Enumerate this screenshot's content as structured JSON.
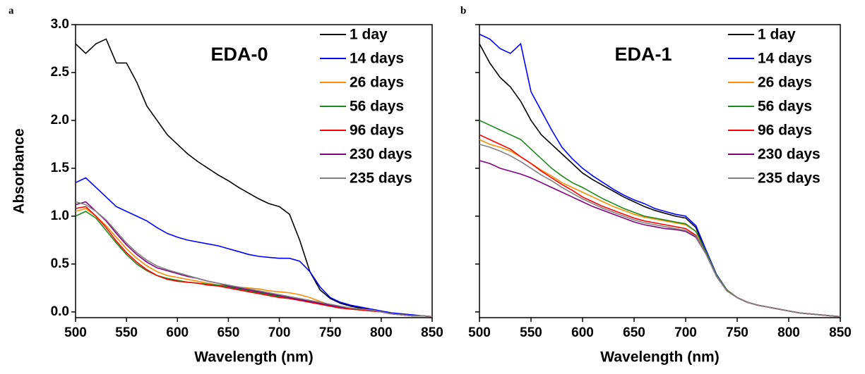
{
  "chart_data": [
    {
      "type": "line",
      "panel_label": "a",
      "annotation": "EDA-0",
      "xlabel": "Wavelength (nm)",
      "ylabel": "Absorbance",
      "x": [
        500,
        510,
        520,
        530,
        540,
        550,
        560,
        570,
        580,
        590,
        600,
        610,
        620,
        630,
        640,
        650,
        660,
        670,
        680,
        690,
        700,
        710,
        720,
        730,
        740,
        750,
        760,
        770,
        780,
        790,
        800,
        810,
        820,
        830,
        840,
        850
      ],
      "xlim": [
        500,
        850
      ],
      "xticks": [
        500,
        550,
        600,
        650,
        700,
        750,
        800,
        850
      ],
      "ylim": [
        -0.06,
        3.0
      ],
      "yticks": [
        {
          "value": 0,
          "label": "0.0"
        },
        {
          "value": 0.5,
          "label": "0.5"
        },
        {
          "value": 1,
          "label": "1.0"
        },
        {
          "value": 1.5,
          "label": "1.5"
        },
        {
          "value": 2,
          "label": "2.0"
        },
        {
          "value": 2.5,
          "label": "2.5"
        },
        {
          "value": 3,
          "label": "3.0"
        }
      ],
      "show_ytick_labels": true,
      "series": [
        {
          "name": "1 day",
          "color": "#000000",
          "values": [
            2.8,
            2.7,
            2.8,
            2.85,
            2.6,
            2.6,
            2.4,
            2.15,
            2.0,
            1.85,
            1.75,
            1.65,
            1.57,
            1.5,
            1.43,
            1.37,
            1.3,
            1.24,
            1.18,
            1.13,
            1.1,
            1.02,
            0.75,
            0.42,
            0.23,
            0.14,
            0.09,
            0.06,
            0.04,
            0.02,
            0.0,
            -0.02,
            -0.03,
            -0.04,
            -0.04,
            -0.05
          ]
        },
        {
          "name": "14 days",
          "color": "#0000ff",
          "values": [
            1.35,
            1.4,
            1.3,
            1.2,
            1.1,
            1.05,
            1.0,
            0.95,
            0.88,
            0.82,
            0.78,
            0.75,
            0.73,
            0.71,
            0.69,
            0.66,
            0.63,
            0.6,
            0.58,
            0.57,
            0.56,
            0.56,
            0.53,
            0.42,
            0.26,
            0.15,
            0.1,
            0.07,
            0.05,
            0.03,
            0.01,
            -0.01,
            -0.02,
            -0.03,
            -0.04,
            -0.05
          ]
        },
        {
          "name": "26 days",
          "color": "#ff8c00",
          "values": [
            1.05,
            1.08,
            1.0,
            0.9,
            0.78,
            0.66,
            0.56,
            0.48,
            0.42,
            0.38,
            0.36,
            0.34,
            0.32,
            0.3,
            0.28,
            0.27,
            0.26,
            0.25,
            0.24,
            0.22,
            0.21,
            0.2,
            0.18,
            0.15,
            0.11,
            0.07,
            0.05,
            0.03,
            0.02,
            0.01,
            0.0,
            -0.02,
            -0.03,
            -0.04,
            -0.04,
            -0.05
          ]
        },
        {
          "name": "56 days",
          "color": "#1a8a1a",
          "values": [
            1.0,
            1.05,
            0.98,
            0.85,
            0.72,
            0.6,
            0.5,
            0.43,
            0.38,
            0.35,
            0.33,
            0.31,
            0.3,
            0.29,
            0.28,
            0.26,
            0.24,
            0.22,
            0.2,
            0.18,
            0.16,
            0.14,
            0.12,
            0.1,
            0.08,
            0.06,
            0.04,
            0.03,
            0.02,
            0.01,
            0.0,
            -0.02,
            -0.03,
            -0.04,
            -0.04,
            -0.05
          ]
        },
        {
          "name": "96 days",
          "color": "#ff0000",
          "values": [
            1.08,
            1.1,
            1.0,
            0.88,
            0.74,
            0.62,
            0.52,
            0.44,
            0.38,
            0.34,
            0.32,
            0.31,
            0.3,
            0.28,
            0.27,
            0.25,
            0.23,
            0.21,
            0.19,
            0.17,
            0.15,
            0.14,
            0.12,
            0.1,
            0.08,
            0.06,
            0.04,
            0.03,
            0.02,
            0.01,
            0.0,
            -0.02,
            -0.03,
            -0.04,
            -0.04,
            -0.05
          ]
        },
        {
          "name": "230 days",
          "color": "#800080",
          "values": [
            1.12,
            1.15,
            1.05,
            0.95,
            0.82,
            0.7,
            0.6,
            0.52,
            0.46,
            0.43,
            0.4,
            0.37,
            0.35,
            0.32,
            0.3,
            0.27,
            0.25,
            0.23,
            0.21,
            0.19,
            0.17,
            0.15,
            0.13,
            0.11,
            0.09,
            0.07,
            0.05,
            0.04,
            0.03,
            0.02,
            0.0,
            -0.02,
            -0.03,
            -0.04,
            -0.04,
            -0.05
          ]
        },
        {
          "name": "235 days",
          "color": "#808080",
          "values": [
            1.15,
            1.12,
            1.05,
            0.96,
            0.84,
            0.72,
            0.62,
            0.54,
            0.48,
            0.44,
            0.41,
            0.38,
            0.35,
            0.32,
            0.3,
            0.28,
            0.26,
            0.24,
            0.22,
            0.2,
            0.18,
            0.16,
            0.14,
            0.12,
            0.1,
            0.08,
            0.06,
            0.04,
            0.03,
            0.02,
            0.0,
            -0.02,
            -0.03,
            -0.04,
            -0.04,
            -0.05
          ]
        }
      ]
    },
    {
      "type": "line",
      "panel_label": "b",
      "annotation": "EDA-1",
      "xlabel": "Wavelength (nm)",
      "x": [
        500,
        510,
        520,
        530,
        540,
        550,
        560,
        570,
        580,
        590,
        600,
        610,
        620,
        630,
        640,
        650,
        660,
        670,
        680,
        690,
        700,
        710,
        720,
        730,
        740,
        750,
        760,
        770,
        780,
        790,
        800,
        810,
        820,
        830,
        840,
        850
      ],
      "xlim": [
        500,
        850
      ],
      "xticks": [
        500,
        550,
        600,
        650,
        700,
        750,
        800,
        850
      ],
      "ylim": [
        -0.06,
        3.0
      ],
      "yticks": [
        0,
        0.5,
        1,
        1.5,
        2,
        2.5,
        3
      ],
      "show_ytick_labels": false,
      "series": [
        {
          "name": "1 day",
          "color": "#000000",
          "values": [
            2.8,
            2.6,
            2.45,
            2.35,
            2.2,
            2.0,
            1.85,
            1.75,
            1.65,
            1.55,
            1.45,
            1.38,
            1.32,
            1.26,
            1.2,
            1.15,
            1.1,
            1.06,
            1.03,
            1.0,
            0.98,
            0.88,
            0.62,
            0.38,
            0.23,
            0.15,
            0.1,
            0.07,
            0.05,
            0.03,
            0.01,
            -0.01,
            -0.02,
            -0.03,
            -0.04,
            -0.05
          ]
        },
        {
          "name": "14 days",
          "color": "#0000ff",
          "values": [
            2.9,
            2.85,
            2.75,
            2.7,
            2.8,
            2.3,
            2.1,
            1.9,
            1.72,
            1.6,
            1.5,
            1.42,
            1.35,
            1.28,
            1.22,
            1.17,
            1.13,
            1.08,
            1.05,
            1.02,
            1.0,
            0.9,
            0.64,
            0.39,
            0.23,
            0.15,
            0.1,
            0.07,
            0.05,
            0.03,
            0.01,
            -0.01,
            -0.02,
            -0.03,
            -0.04,
            -0.05
          ]
        },
        {
          "name": "26 days",
          "color": "#ff8c00",
          "values": [
            1.8,
            1.75,
            1.72,
            1.68,
            1.62,
            1.55,
            1.48,
            1.42,
            1.35,
            1.3,
            1.25,
            1.2,
            1.15,
            1.1,
            1.06,
            1.02,
            0.99,
            0.97,
            0.95,
            0.93,
            0.91,
            0.84,
            0.62,
            0.38,
            0.23,
            0.15,
            0.1,
            0.07,
            0.05,
            0.03,
            0.01,
            -0.01,
            -0.02,
            -0.03,
            -0.04,
            -0.05
          ]
        },
        {
          "name": "56 days",
          "color": "#1a8a1a",
          "values": [
            2.0,
            1.95,
            1.9,
            1.85,
            1.8,
            1.7,
            1.6,
            1.5,
            1.42,
            1.35,
            1.3,
            1.24,
            1.18,
            1.13,
            1.08,
            1.04,
            1.0,
            0.98,
            0.96,
            0.94,
            0.92,
            0.84,
            0.62,
            0.38,
            0.23,
            0.15,
            0.1,
            0.07,
            0.05,
            0.03,
            0.01,
            -0.01,
            -0.02,
            -0.03,
            -0.04,
            -0.05
          ]
        },
        {
          "name": "96 days",
          "color": "#ff0000",
          "values": [
            1.85,
            1.8,
            1.75,
            1.7,
            1.62,
            1.55,
            1.47,
            1.4,
            1.33,
            1.27,
            1.2,
            1.15,
            1.1,
            1.06,
            1.02,
            0.98,
            0.95,
            0.93,
            0.91,
            0.89,
            0.87,
            0.8,
            0.6,
            0.37,
            0.22,
            0.15,
            0.1,
            0.07,
            0.05,
            0.03,
            0.01,
            -0.01,
            -0.02,
            -0.03,
            -0.04,
            -0.05
          ]
        },
        {
          "name": "230 days",
          "color": "#800080",
          "values": [
            1.58,
            1.55,
            1.5,
            1.47,
            1.44,
            1.4,
            1.35,
            1.3,
            1.25,
            1.2,
            1.15,
            1.1,
            1.06,
            1.02,
            0.98,
            0.94,
            0.91,
            0.89,
            0.87,
            0.86,
            0.84,
            0.78,
            0.6,
            0.37,
            0.22,
            0.15,
            0.1,
            0.07,
            0.05,
            0.03,
            0.01,
            -0.01,
            -0.02,
            -0.03,
            -0.04,
            -0.05
          ]
        },
        {
          "name": "235 days",
          "color": "#808080",
          "values": [
            1.75,
            1.72,
            1.68,
            1.63,
            1.57,
            1.5,
            1.43,
            1.37,
            1.3,
            1.24,
            1.18,
            1.13,
            1.08,
            1.04,
            1.0,
            0.96,
            0.93,
            0.91,
            0.89,
            0.87,
            0.85,
            0.79,
            0.6,
            0.37,
            0.22,
            0.15,
            0.1,
            0.07,
            0.05,
            0.03,
            0.01,
            -0.01,
            -0.02,
            -0.03,
            -0.04,
            -0.05
          ]
        }
      ]
    }
  ]
}
